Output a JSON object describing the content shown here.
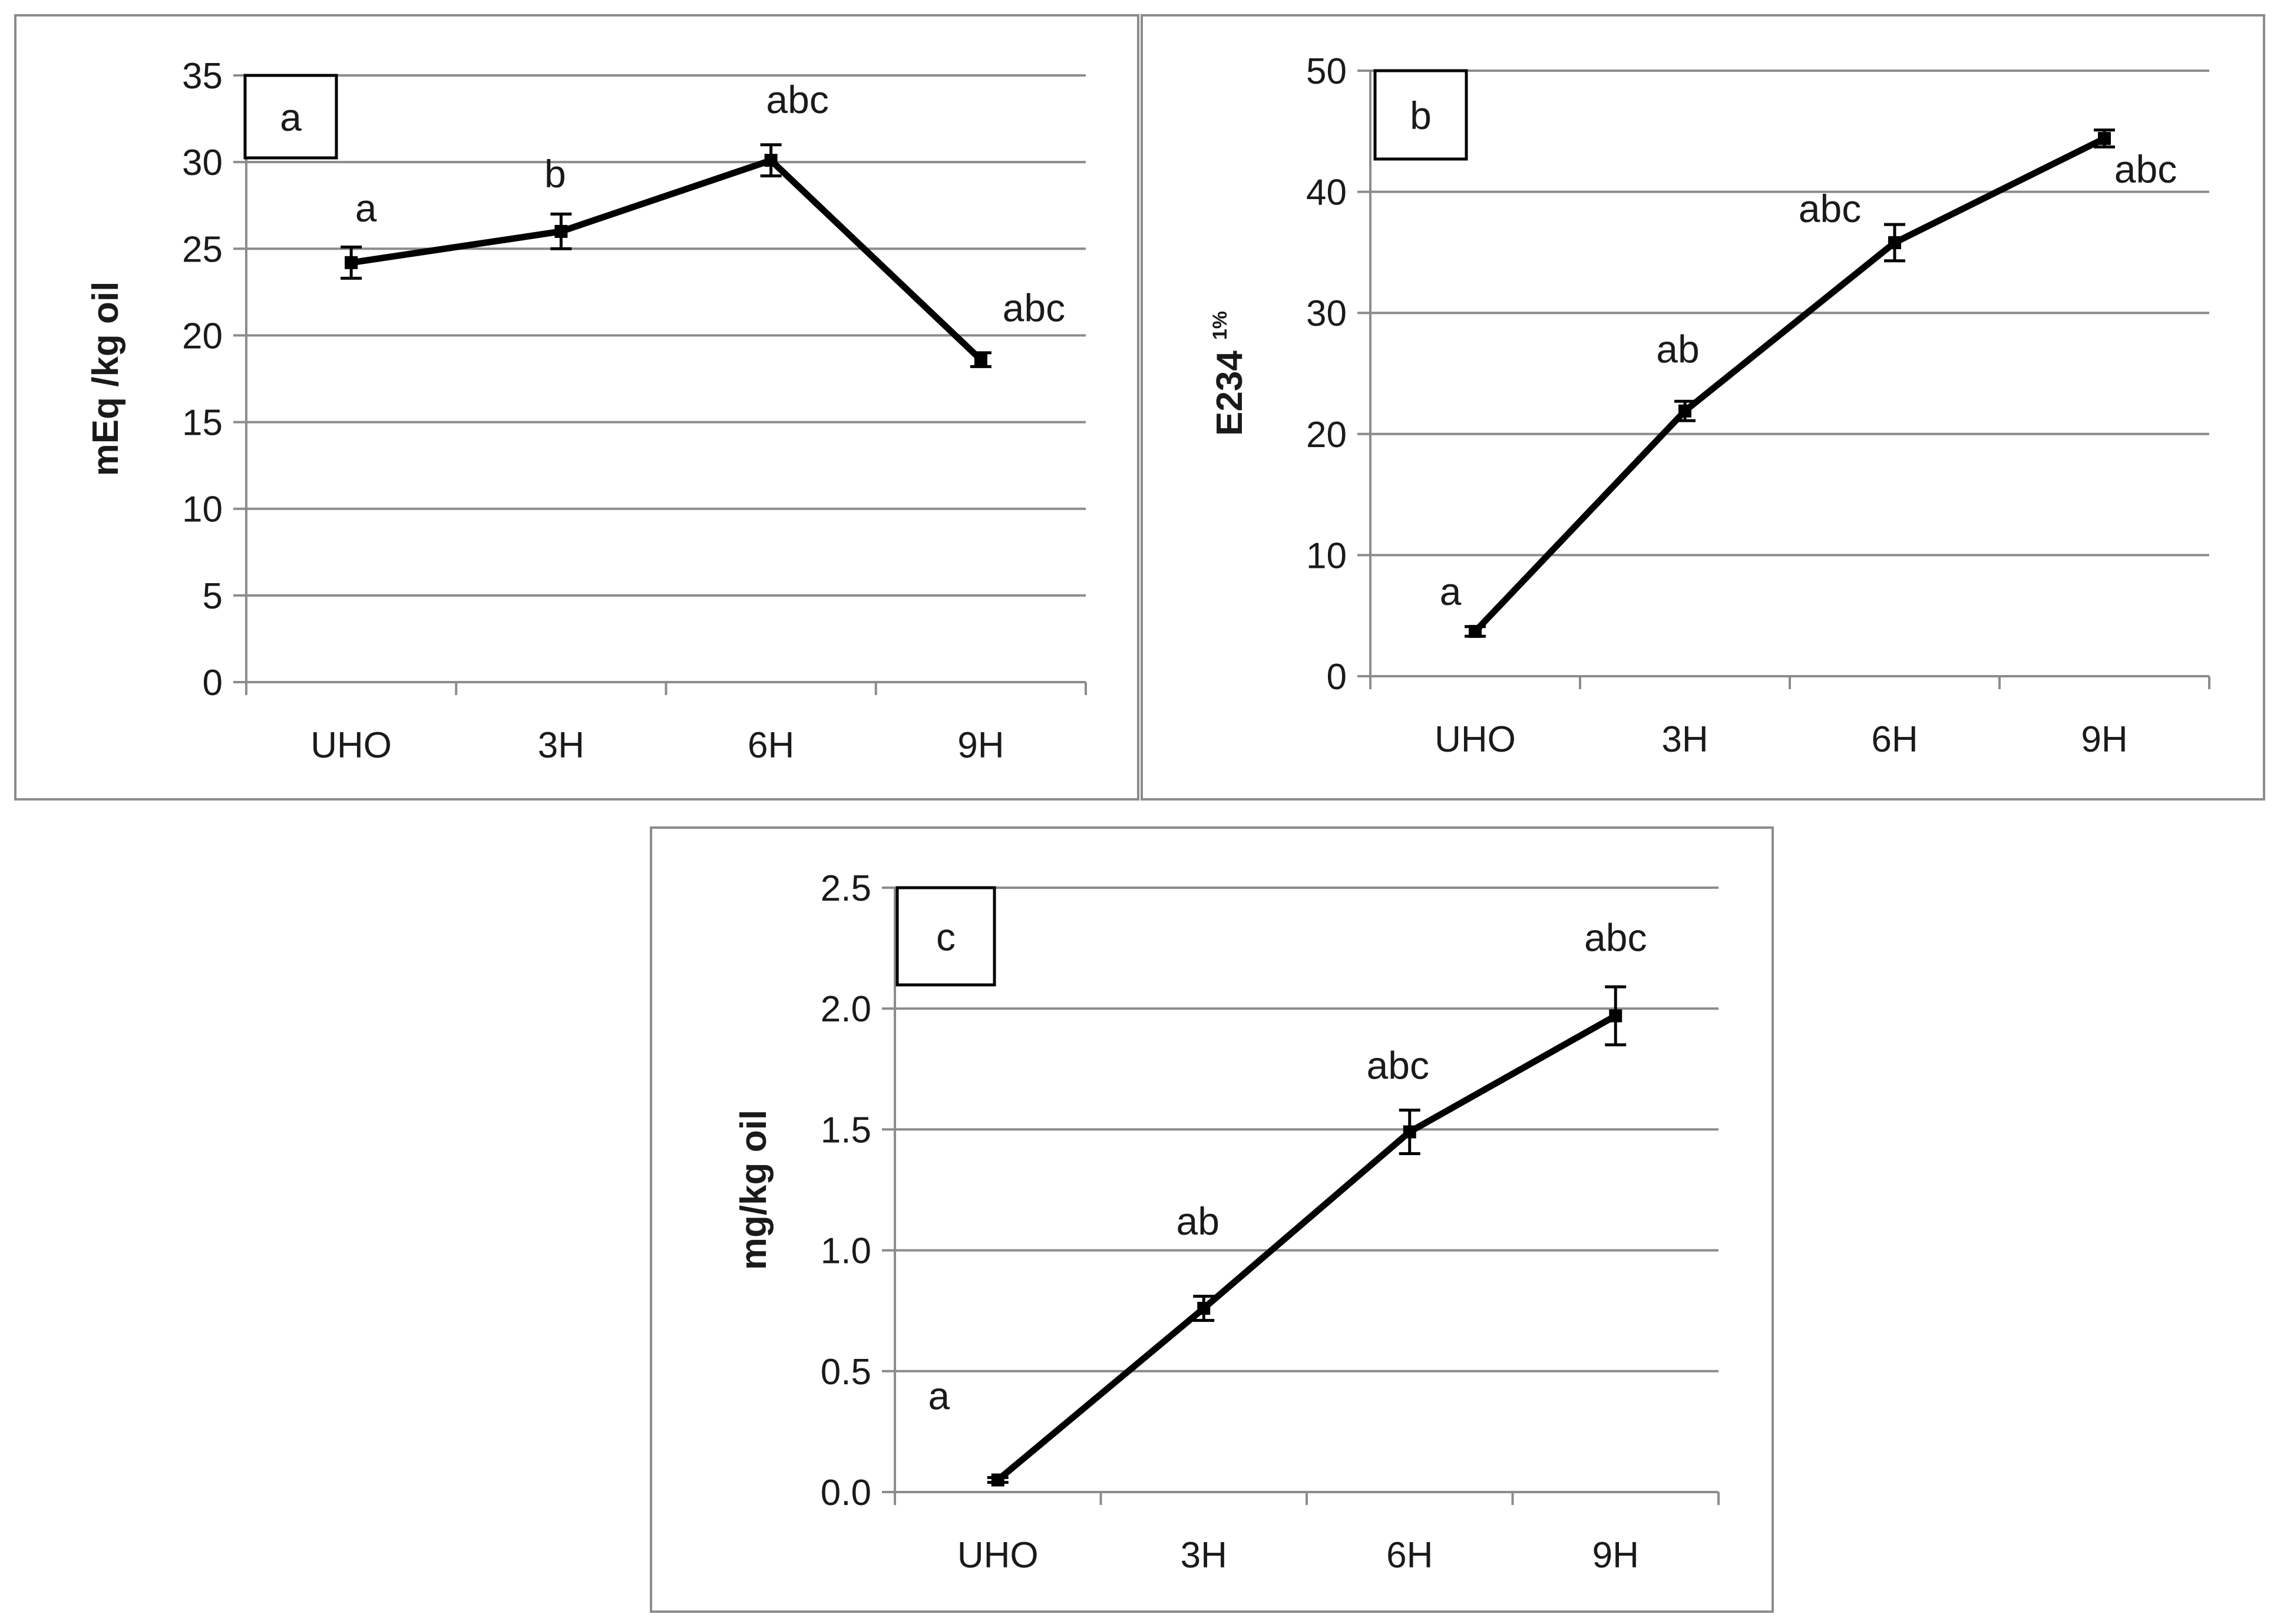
{
  "chart_data": [
    {
      "type": "line",
      "panel_tag": "a",
      "categories": [
        "UHO",
        "3H",
        "6H",
        "9H"
      ],
      "values": [
        24.2,
        26.0,
        30.1,
        18.6
      ],
      "errors": [
        0.9,
        1.0,
        0.9,
        0.4
      ],
      "annotations": [
        "a",
        "b",
        "abc",
        "abc"
      ],
      "ylabel": "mEq /kg oil",
      "ylabel_sup": "",
      "ylim": [
        0,
        35
      ],
      "yticks": [
        0,
        5,
        10,
        15,
        20,
        25,
        30,
        35
      ],
      "ytick_labels": [
        "0",
        "5",
        "10",
        "15",
        "20",
        "25",
        "30",
        "35"
      ],
      "grid": true
    },
    {
      "type": "line",
      "panel_tag": "b",
      "categories": [
        "UHO",
        "3H",
        "6H",
        "9H"
      ],
      "values": [
        3.7,
        21.9,
        35.8,
        44.4
      ],
      "errors": [
        0.4,
        0.8,
        1.5,
        0.7
      ],
      "annotations": [
        "a",
        "ab",
        "abc",
        "abc"
      ],
      "ylabel": "E234",
      "ylabel_sup": "1%",
      "ylim": [
        0,
        50
      ],
      "yticks": [
        0,
        10,
        20,
        30,
        40,
        50
      ],
      "ytick_labels": [
        "0",
        "10",
        "20",
        "30",
        "40",
        "50"
      ],
      "grid": true
    },
    {
      "type": "line",
      "panel_tag": "c",
      "categories": [
        "UHO",
        "3H",
        "6H",
        "9H"
      ],
      "values": [
        0.05,
        0.76,
        1.49,
        1.97
      ],
      "errors": [
        0.01,
        0.05,
        0.09,
        0.12
      ],
      "annotations": [
        "a",
        "ab",
        "abc",
        "abc"
      ],
      "ylabel": "mg/kg oil",
      "ylabel_sup": "",
      "ylim": [
        0,
        2.5
      ],
      "yticks": [
        0,
        0.5,
        1.0,
        1.5,
        2.0,
        2.5
      ],
      "ytick_labels": [
        "0.0",
        "0.5",
        "1.0",
        "1.5",
        "2.0",
        "2.5"
      ],
      "grid": true
    }
  ]
}
